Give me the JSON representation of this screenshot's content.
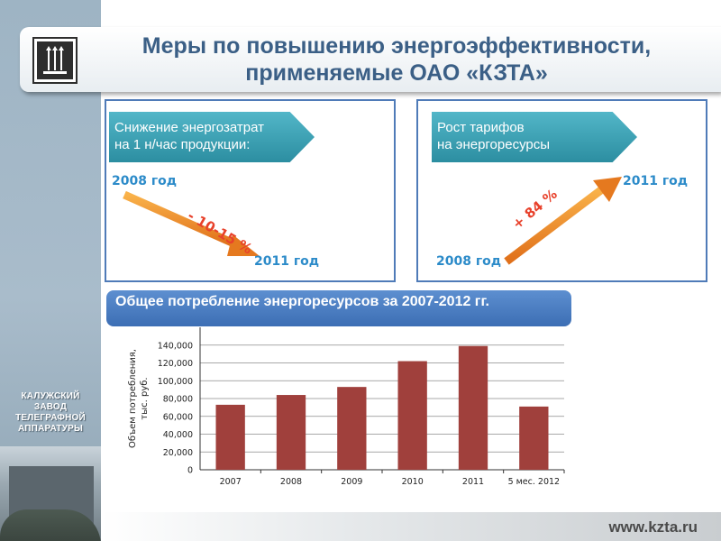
{
  "header": {
    "title_line1": "Меры по повышению энергоэффективности,",
    "title_line2": "применяемые ОАО «КЗТА»"
  },
  "sidebar": {
    "company_lines": [
      "КАЛУЖСКИЙ",
      "ЗАВОД",
      "ТЕЛЕГРАФНОЙ",
      "АППАРАТУРЫ"
    ]
  },
  "panels": {
    "left": {
      "label_line1": "Снижение энергозатрат",
      "label_line2": "на 1 н/час  продукции:",
      "year_start": "2008 год",
      "year_end": "2011 год",
      "change": "- 10-15 %"
    },
    "right": {
      "label_line1": "Рост тарифов",
      "label_line2": "на энергоресурсы",
      "year_start": "2008 год",
      "year_end": "2011 год",
      "change": "+ 84 %"
    }
  },
  "chart_caption": "Общее потребление энергоресурсов  за 2007-2012 гг.",
  "chart_data": {
    "type": "bar",
    "categories": [
      "2007",
      "2008",
      "2009",
      "2010",
      "2011",
      "5 мес. 2012"
    ],
    "values": [
      73000,
      84000,
      93000,
      122000,
      139000,
      71000
    ],
    "ylabel_line1": "Объем потребления,",
    "ylabel_line2": "тыс. руб.",
    "ylim": [
      0,
      160000
    ],
    "yticks": [
      "0",
      "20,000",
      "40,000",
      "60,000",
      "80,000",
      "100,000",
      "120,000",
      "140,000"
    ],
    "grid": true,
    "bar_color": "#a0403c"
  },
  "footer": {
    "url": "www.kzta.ru"
  },
  "colors": {
    "title": "#3b5f86",
    "panel_border": "#4f7bb8",
    "year_text": "#2c8bc9",
    "percent_text": "#e8412b",
    "arrow": "#f08a1e",
    "chevron": "#2c8ea1"
  }
}
